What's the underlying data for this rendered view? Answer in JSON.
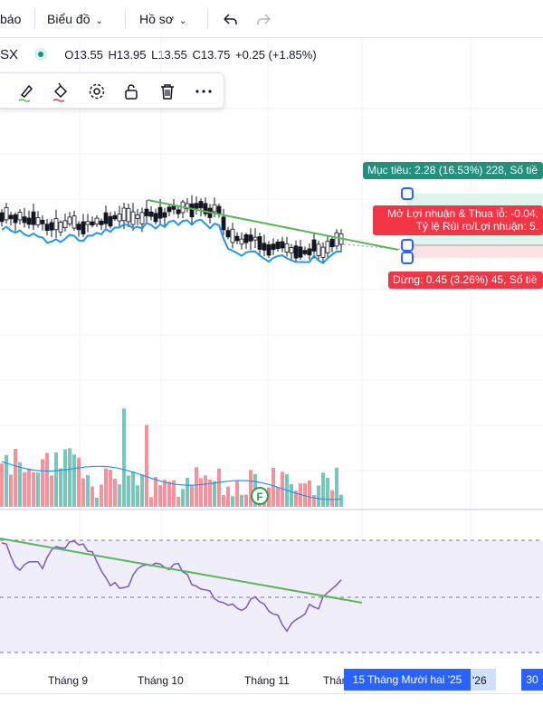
{
  "topbar": {
    "alerts_label": "báo",
    "chart_type_label": "Biểu đồ",
    "profile_label": "Hồ sơ"
  },
  "legend": {
    "symbol": "SX",
    "open": "O13.55",
    "high": "H13.95",
    "low": "L13.55",
    "close": "C13.75",
    "change": "+0.25 (+1.85%)"
  },
  "position_tool": {
    "target_label": "Mục tiêu: 2.28 (16.53%) 228, Số tiề",
    "pnl_label": "Mở Lợi nhuận & Thua lỗ: -0.04,",
    "ratio_label": "Tỷ lệ Rủi ro/Lợi nhuận: 5.",
    "stop_label": "Dừng: 0.45 (3.26%) 45, Số tiề"
  },
  "events": {
    "earnings_marker": "F"
  },
  "time_axis": {
    "labels": [
      "Tháng 9",
      "Tháng 10",
      "Tháng 11",
      "Thán"
    ],
    "selected_date": "15 Tháng Mười hai '25",
    "label_26": "'26",
    "label_30": "30"
  },
  "colors": {
    "accent": "#2962ff",
    "up": "#089981",
    "down": "#f23645",
    "target_fill": "#d6f0e8",
    "stop_fill": "#fbdde0",
    "trend_line": "#5bb55b",
    "ma_line": "#2196f3",
    "rsi_line": "#7e57c2",
    "rsi_band": "#f0eefb"
  },
  "icons": [
    "undo-icon",
    "redo-icon",
    "brush-icon",
    "paint-bucket-icon",
    "gear-icon",
    "unlock-icon",
    "trash-icon",
    "more-icon"
  ]
}
